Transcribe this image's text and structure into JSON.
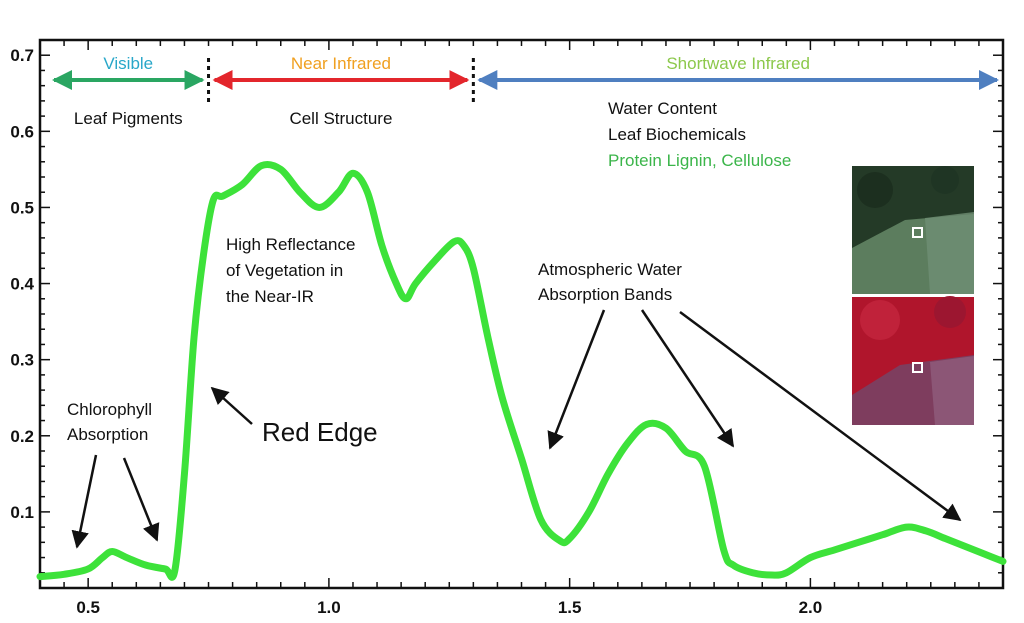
{
  "chart_data": {
    "type": "line",
    "xlim": [
      0.4,
      2.4
    ],
    "ylim": [
      0.0,
      0.72
    ],
    "x_ticks": [
      0.5,
      1.0,
      1.5,
      2.0
    ],
    "x_tick_labels": [
      "0.5",
      "1.0",
      "1.5",
      "2.0"
    ],
    "y_ticks": [
      0.1,
      0.2,
      0.3,
      0.4,
      0.5,
      0.6,
      0.7
    ],
    "y_tick_labels": [
      "0.1",
      "0.2",
      "0.3",
      "0.4",
      "0.5",
      "0.6",
      "0.7"
    ],
    "grid": false,
    "series": [
      {
        "color": "#3de23a",
        "x": [
          0.4,
          0.45,
          0.5,
          0.53,
          0.55,
          0.58,
          0.62,
          0.66,
          0.68,
          0.7,
          0.72,
          0.74,
          0.76,
          0.78,
          0.82,
          0.86,
          0.9,
          0.94,
          0.98,
          1.02,
          1.05,
          1.08,
          1.11,
          1.14,
          1.16,
          1.18,
          1.22,
          1.26,
          1.28,
          1.3,
          1.33,
          1.36,
          1.4,
          1.44,
          1.48,
          1.5,
          1.54,
          1.58,
          1.62,
          1.66,
          1.7,
          1.74,
          1.78,
          1.82,
          1.84,
          1.88,
          1.92,
          1.95,
          2.0,
          2.05,
          2.1,
          2.15,
          2.2,
          2.24,
          2.28,
          2.32,
          2.36,
          2.4
        ],
        "y": [
          0.015,
          0.018,
          0.025,
          0.04,
          0.048,
          0.04,
          0.03,
          0.025,
          0.023,
          0.15,
          0.33,
          0.44,
          0.51,
          0.515,
          0.53,
          0.555,
          0.55,
          0.52,
          0.5,
          0.52,
          0.545,
          0.52,
          0.45,
          0.4,
          0.38,
          0.4,
          0.43,
          0.455,
          0.45,
          0.42,
          0.33,
          0.25,
          0.17,
          0.09,
          0.062,
          0.065,
          0.1,
          0.15,
          0.19,
          0.215,
          0.21,
          0.18,
          0.16,
          0.05,
          0.03,
          0.02,
          0.017,
          0.02,
          0.04,
          0.05,
          0.06,
          0.07,
          0.08,
          0.075,
          0.065,
          0.055,
          0.045,
          0.035
        ]
      }
    ],
    "regions": [
      {
        "label": "Visible",
        "color": "#29a7c9",
        "arrow_color": "#2aa662",
        "from": 0.4,
        "to": 0.75,
        "sublabel": "Leaf Pigments"
      },
      {
        "label": "Near Infrared",
        "color": "#f0a020",
        "arrow_color": "#e3262c",
        "from": 0.75,
        "to": 1.3,
        "sublabel": "Cell Structure"
      },
      {
        "label": "Shortwave Infrared",
        "color": "#8cc84b",
        "arrow_color": "#4f7fc0",
        "from": 1.3,
        "to": 2.4
      }
    ],
    "swir_labels": [
      {
        "text": "Water Content",
        "color": "#111111"
      },
      {
        "text": "Leaf Biochemicals",
        "color": "#111111"
      },
      {
        "text": "Protein Lignin, Cellulose",
        "color": "#3bb54a"
      }
    ],
    "annotations": {
      "high_reflectance": [
        "High Reflectance",
        "of Vegetation in",
        "the Near-IR"
      ],
      "atmospheric": [
        "Atmospheric Water",
        "Absorption Bands"
      ],
      "chlorophyll": [
        "Chlorophyll",
        "Absorption"
      ],
      "red_edge": "Red Edge"
    }
  }
}
